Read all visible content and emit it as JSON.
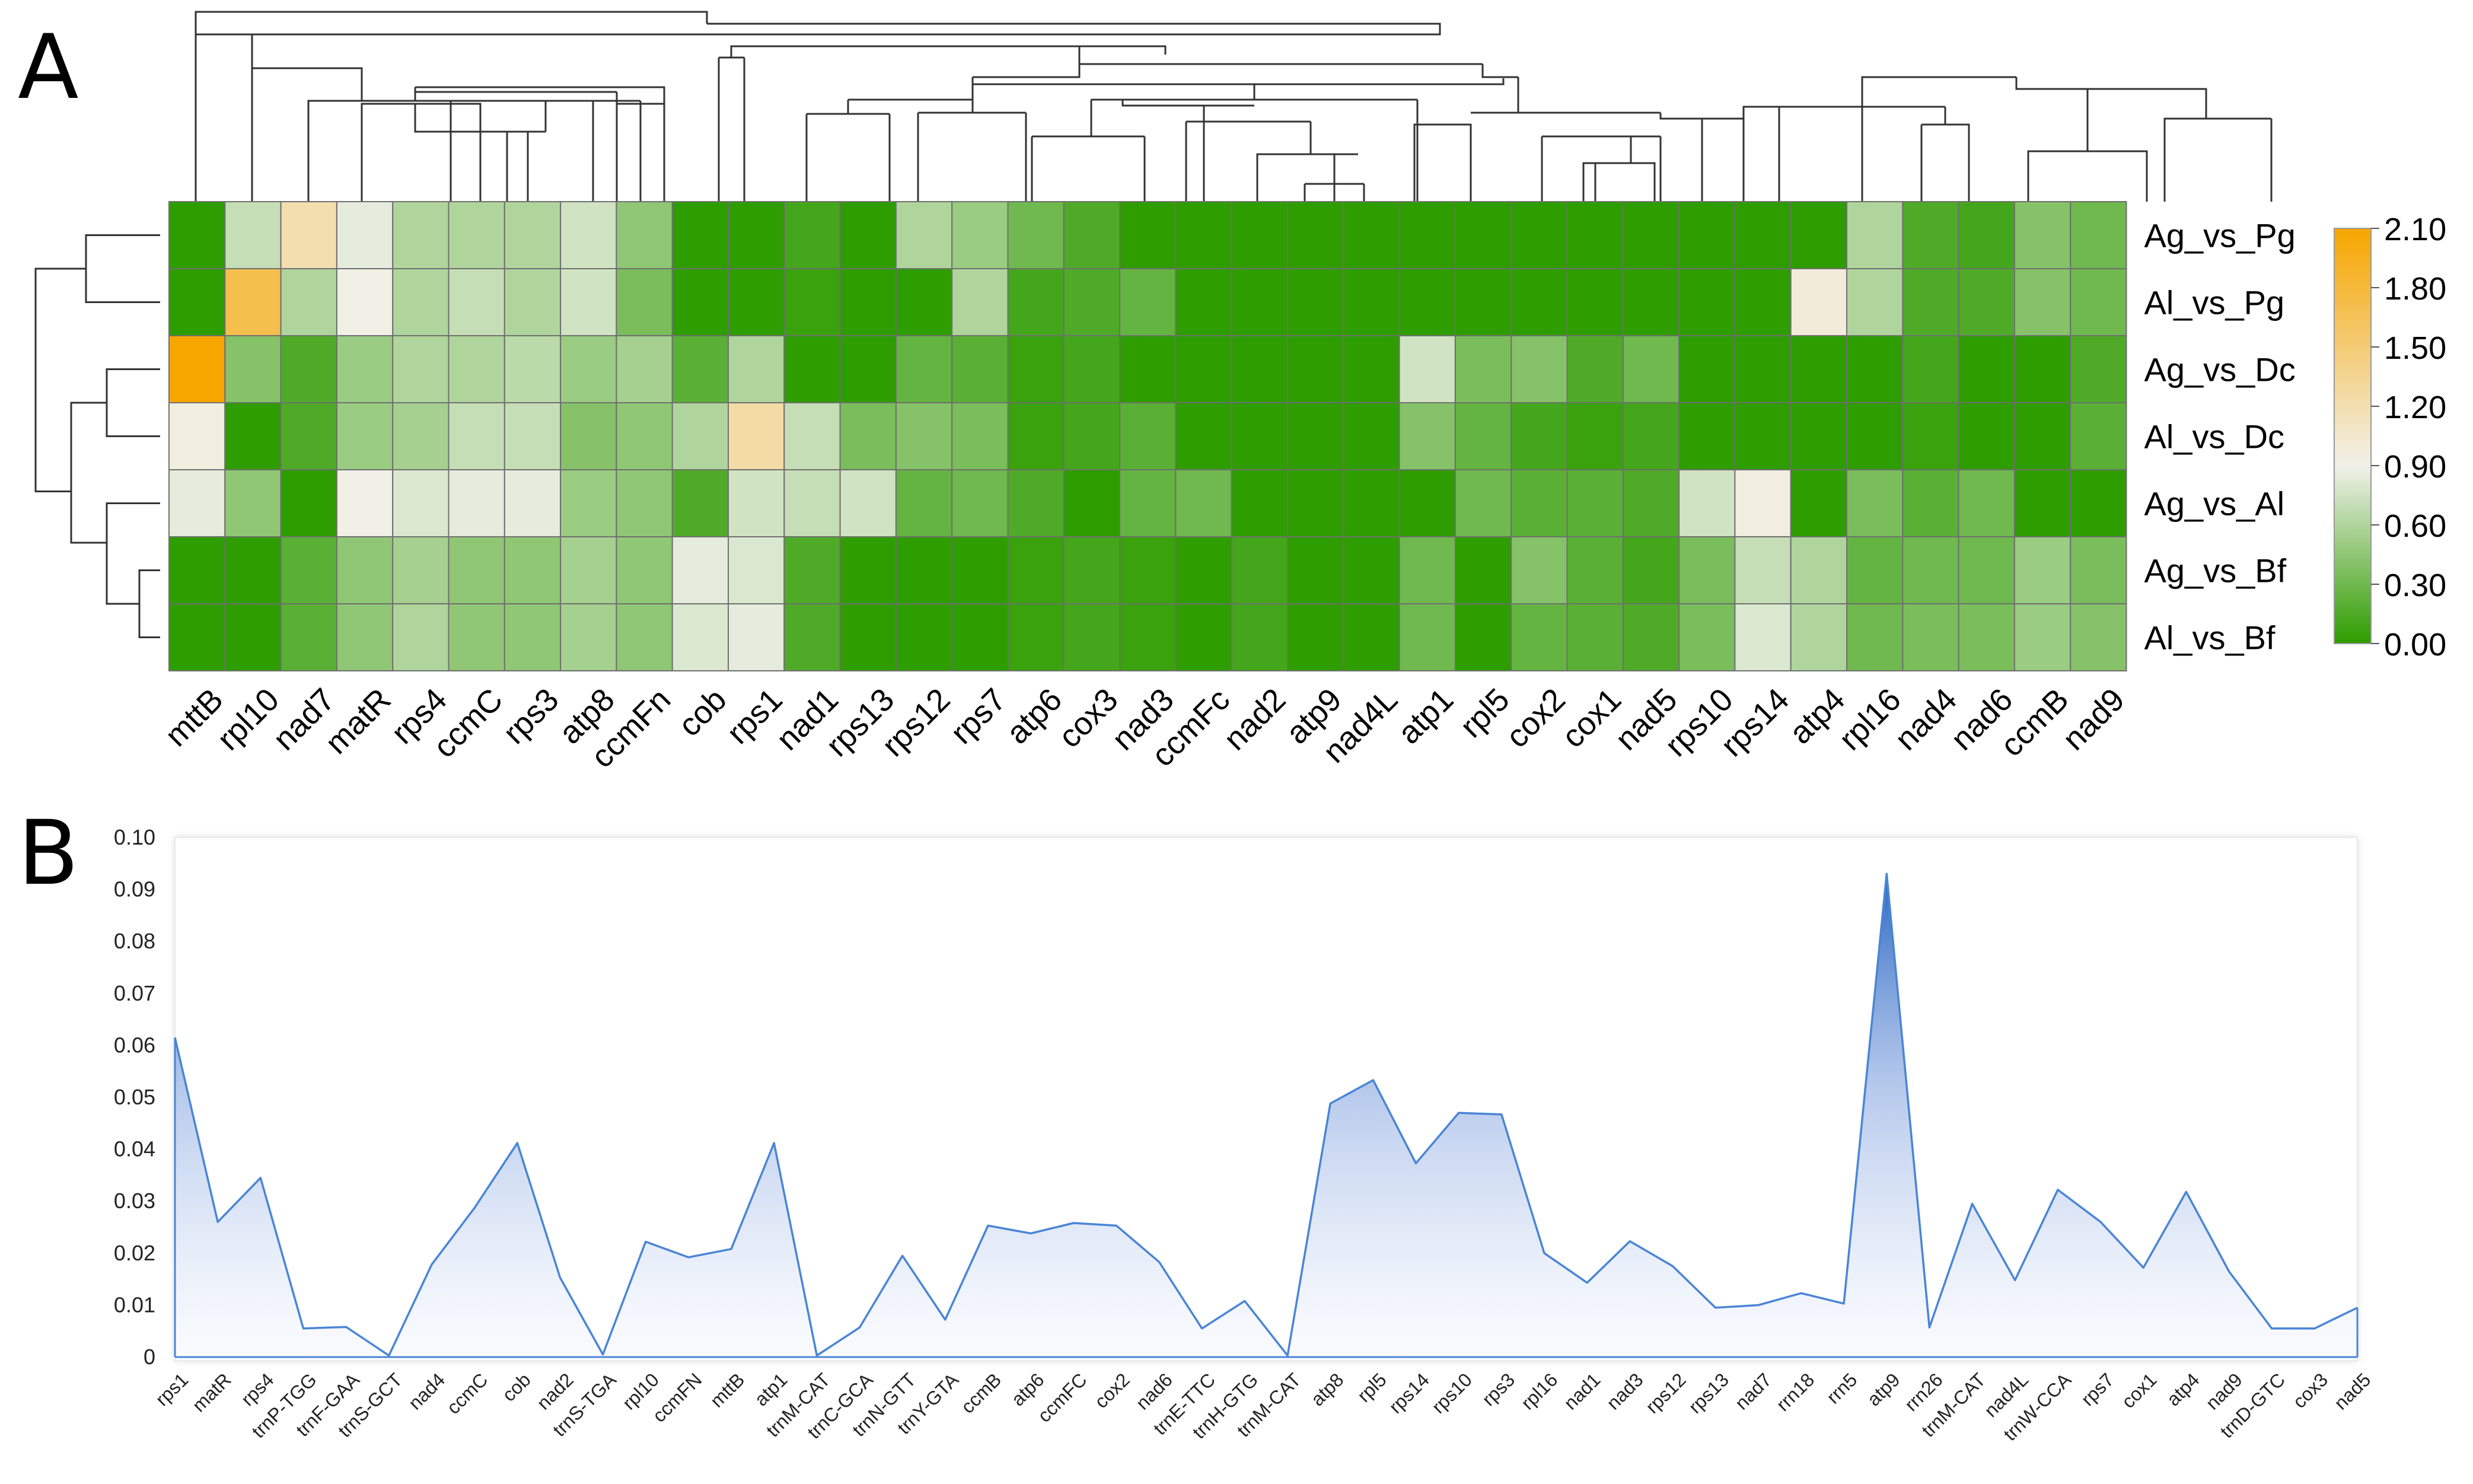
{
  "panel_a_label": "A",
  "panel_b_label": "B",
  "chart_data": [
    {
      "type": "heatmap",
      "title": "",
      "columns": [
        "mttB",
        "rpl10",
        "nad7",
        "matR",
        "rps4",
        "ccmC",
        "rps3",
        "atp8",
        "ccmFn",
        "cob",
        "rps1",
        "nad1",
        "rps13",
        "rps12",
        "rps7",
        "atp6",
        "cox3",
        "nad3",
        "ccmFc",
        "nad2",
        "atp9",
        "nad4L",
        "atp1",
        "rpl5",
        "cox2",
        "cox1",
        "nad5",
        "rps10",
        "rps14",
        "atp4",
        "rpl16",
        "nad4",
        "nad6",
        "ccmB",
        "nad9"
      ],
      "rows": [
        "Ag_vs_Pg",
        "Al_vs_Pg",
        "Ag_vs_Dc",
        "Al_vs_Dc",
        "Ag_vs_Al",
        "Ag_vs_Bf",
        "Al_vs_Bf"
      ],
      "values": [
        [
          0.0,
          0.7,
          1.2,
          0.85,
          0.6,
          0.6,
          0.6,
          0.75,
          0.45,
          0.0,
          0.0,
          0.1,
          0.0,
          0.6,
          0.5,
          0.3,
          0.15,
          0.0,
          0.0,
          0.0,
          0.0,
          0.0,
          0.0,
          0.0,
          0.0,
          0.0,
          0.0,
          0.0,
          0.0,
          0.0,
          0.6,
          0.15,
          0.1,
          0.4,
          0.3
        ],
        [
          0.0,
          1.7,
          0.6,
          0.92,
          0.6,
          0.7,
          0.6,
          0.75,
          0.35,
          0.0,
          0.0,
          0.05,
          0.0,
          0.0,
          0.6,
          0.1,
          0.15,
          0.25,
          0.0,
          0.0,
          0.0,
          0.0,
          0.0,
          0.0,
          0.0,
          0.0,
          0.0,
          0.0,
          0.0,
          0.98,
          0.6,
          0.15,
          0.15,
          0.4,
          0.3
        ],
        [
          2.1,
          0.4,
          0.15,
          0.5,
          0.6,
          0.6,
          0.65,
          0.5,
          0.55,
          0.2,
          0.6,
          0.0,
          0.0,
          0.25,
          0.2,
          0.05,
          0.1,
          0.0,
          0.0,
          0.0,
          0.0,
          0.0,
          0.75,
          0.35,
          0.4,
          0.15,
          0.3,
          0.0,
          0.0,
          0.0,
          0.0,
          0.1,
          0.0,
          0.0,
          0.15
        ],
        [
          0.95,
          0.0,
          0.15,
          0.5,
          0.55,
          0.7,
          0.7,
          0.4,
          0.45,
          0.6,
          1.25,
          0.7,
          0.35,
          0.4,
          0.35,
          0.05,
          0.1,
          0.2,
          0.0,
          0.0,
          0.0,
          0.0,
          0.4,
          0.25,
          0.1,
          0.05,
          0.1,
          0.0,
          0.0,
          0.0,
          0.0,
          0.05,
          0.0,
          0.0,
          0.2
        ],
        [
          0.85,
          0.45,
          0.0,
          0.92,
          0.8,
          0.85,
          0.85,
          0.5,
          0.45,
          0.15,
          0.75,
          0.7,
          0.75,
          0.25,
          0.3,
          0.15,
          0.0,
          0.25,
          0.3,
          0.0,
          0.0,
          0.0,
          0.0,
          0.3,
          0.2,
          0.2,
          0.15,
          0.75,
          0.95,
          0.0,
          0.35,
          0.2,
          0.3,
          0.0,
          0.0
        ],
        [
          0.0,
          0.0,
          0.2,
          0.45,
          0.55,
          0.45,
          0.45,
          0.55,
          0.45,
          0.85,
          0.8,
          0.15,
          0.0,
          0.0,
          0.0,
          0.05,
          0.1,
          0.05,
          0.0,
          0.1,
          0.0,
          0.0,
          0.3,
          0.0,
          0.4,
          0.2,
          0.1,
          0.35,
          0.7,
          0.6,
          0.25,
          0.3,
          0.3,
          0.5,
          0.35
        ],
        [
          0.0,
          0.0,
          0.2,
          0.45,
          0.6,
          0.45,
          0.45,
          0.55,
          0.45,
          0.8,
          0.85,
          0.15,
          0.0,
          0.0,
          0.0,
          0.05,
          0.1,
          0.05,
          0.0,
          0.1,
          0.0,
          0.0,
          0.3,
          0.0,
          0.25,
          0.2,
          0.15,
          0.35,
          0.8,
          0.6,
          0.3,
          0.35,
          0.35,
          0.5,
          0.4
        ]
      ],
      "scale": {
        "min": 0.0,
        "max": 2.1,
        "ticks": [
          "2.10",
          "1.80",
          "1.50",
          "1.20",
          "0.90",
          "0.60",
          "0.30",
          "0.00"
        ],
        "colors": [
          "#2e9d00",
          "#f1f1ea",
          "#f7a600"
        ]
      }
    },
    {
      "type": "area",
      "title": "",
      "xlabel": "",
      "ylabel": "",
      "ylim": [
        0,
        0.1
      ],
      "y_ticks": [
        "0.10",
        "0.09",
        "0.08",
        "0.07",
        "0.06",
        "0.05",
        "0.04",
        "0.03",
        "0.02",
        "0.01",
        "0"
      ],
      "categories": [
        "rps1",
        "matR",
        "rps4",
        "trnP-TGG",
        "trnF-GAA",
        "trnS-GCT",
        "nad4",
        "ccmC",
        "cob",
        "nad2",
        "trnS-TGA",
        "rpl10",
        "ccmFN",
        "mttB",
        "atp1",
        "trnM-CAT",
        "trnC-GCA",
        "trnN-GTT",
        "trnY-GTA",
        "ccmB",
        "atp6",
        "ccmFC",
        "cox2",
        "nad6",
        "trnE-TTC",
        "trnH-GTG",
        "trnM-CAT",
        "atp8",
        "rpl5",
        "rps14",
        "rps10",
        "rps3",
        "rpl16",
        "nad1",
        "nad3",
        "rps12",
        "rps13",
        "nad7",
        "rrn18",
        "rrn5",
        "atp9",
        "rrn26",
        "trnM-CAT",
        "nad4L",
        "trnW-CCA",
        "rps7",
        "cox1",
        "atp4",
        "nad9",
        "trnD-GTC",
        "cox3",
        "nad5"
      ],
      "values": [
        0.0615,
        0.026,
        0.0345,
        0.0055,
        0.0058,
        0.0003,
        0.0178,
        0.0287,
        0.0412,
        0.0153,
        0.0005,
        0.0222,
        0.0192,
        0.0208,
        0.0412,
        0.0003,
        0.0057,
        0.0195,
        0.0072,
        0.0253,
        0.0238,
        0.0258,
        0.0253,
        0.0183,
        0.0055,
        0.0108,
        0.0003,
        0.0488,
        0.0533,
        0.0373,
        0.047,
        0.0467,
        0.02,
        0.0143,
        0.0223,
        0.0175,
        0.0095,
        0.01,
        0.0123,
        0.0103,
        0.093,
        0.0057,
        0.0295,
        0.0148,
        0.0322,
        0.026,
        0.0172,
        0.0318,
        0.0165,
        0.0055,
        0.0055,
        0.0095
      ],
      "color": "#4a85d6"
    }
  ]
}
